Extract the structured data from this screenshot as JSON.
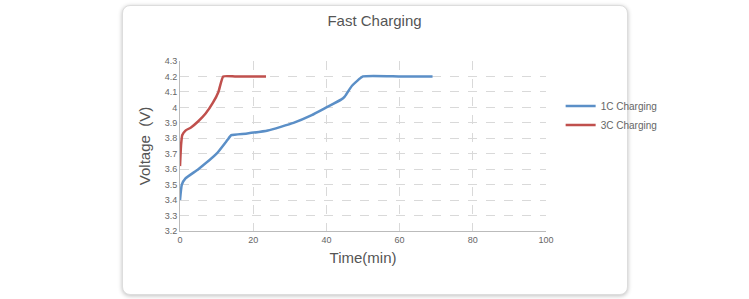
{
  "chart_data": {
    "type": "line",
    "title": "Fast Charging",
    "x_label": "Time(min)",
    "y_label": "Voltage  (V)",
    "xlim": [
      0,
      100
    ],
    "xticks": [
      0,
      20,
      40,
      60,
      80,
      100
    ],
    "ylim": [
      3.2,
      4.3
    ],
    "yticks": [
      3.2,
      3.3,
      3.4,
      3.5,
      3.6,
      3.7,
      3.8,
      3.9,
      4,
      4.1,
      4.2,
      4.3
    ],
    "grid": true,
    "legend": "right",
    "series": [
      {
        "name": "1C Charging",
        "color": "#5b8fc7",
        "x": [
          0,
          0.5,
          1.5,
          5,
          10,
          13,
          14,
          18,
          24,
          31,
          36,
          40,
          44,
          45,
          47,
          50,
          60,
          69
        ],
        "values": [
          3.4,
          3.5,
          3.54,
          3.6,
          3.7,
          3.79,
          3.82,
          3.83,
          3.85,
          3.9,
          3.95,
          4.0,
          4.05,
          4.07,
          4.14,
          4.2,
          4.2,
          4.2
        ]
      },
      {
        "name": "3C Charging",
        "color": "#c0504d",
        "x": [
          0,
          0.3,
          0.6,
          1.5,
          3,
          5,
          7,
          9,
          10.5,
          11.8,
          15,
          20,
          23.5
        ],
        "values": [
          3.62,
          3.76,
          3.82,
          3.85,
          3.87,
          3.91,
          3.96,
          4.03,
          4.1,
          4.2,
          4.2,
          4.2,
          4.2
        ]
      }
    ]
  }
}
